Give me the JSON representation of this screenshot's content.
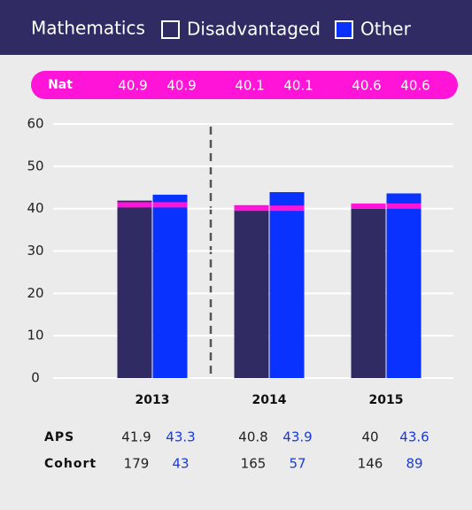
{
  "chart_data": {
    "type": "bar",
    "title": "Mathematics",
    "categories": [
      "2013",
      "2014",
      "2015"
    ],
    "series": [
      {
        "name": "Disadvantaged",
        "color": "#302b63",
        "text_color": "#222222",
        "values": [
          41.9,
          40.8,
          40.0
        ],
        "nat": [
          40.9,
          40.1,
          40.6
        ],
        "cohort": [
          179,
          165,
          146
        ]
      },
      {
        "name": "Other",
        "color": "#0a32ff",
        "text_color": "#1a3adb",
        "values": [
          43.3,
          43.9,
          43.6
        ],
        "nat": [
          40.9,
          40.1,
          40.6
        ],
        "cohort": [
          43,
          57,
          89
        ]
      }
    ],
    "nat_label": "Nat",
    "nat_color": "#ff14d8",
    "row_labels": [
      "APS",
      "Cohort"
    ],
    "ylim": [
      0,
      60
    ],
    "yticks": [
      0,
      10,
      20,
      30,
      40,
      50,
      60
    ],
    "grid": true
  }
}
